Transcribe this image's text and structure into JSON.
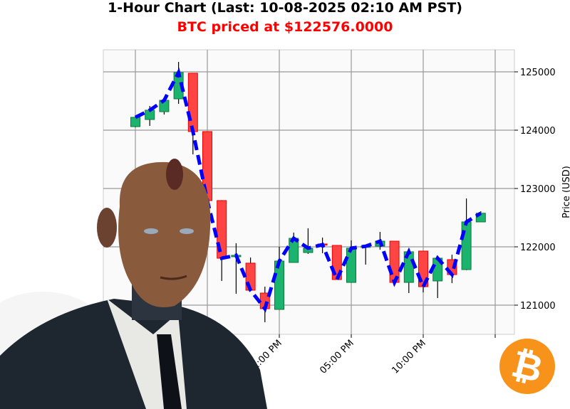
{
  "title": "1-Hour Chart (Last: 10-08-2025 02:10 AM PST)",
  "subtitle": "BTC priced at $122576.0000",
  "colors": {
    "up": "#1cb36e",
    "down": "#ff4444",
    "line": "#0000ff",
    "title_accent": "#ff0000",
    "bitcoin": "#f7931a"
  },
  "icons": {
    "logo": "bitcoin-logo",
    "figure": "android-businessman-illustration"
  },
  "chart_data": {
    "type": "candlestick",
    "ylabel": "Price (USD)",
    "ylim": [
      120500,
      125380
    ],
    "yticks": [
      121000,
      122000,
      123000,
      124000,
      125000
    ],
    "xticks_visible": [
      "12:00 PM",
      "05:00 PM",
      "10:00 PM"
    ],
    "grid": true,
    "overlay_line": "close price, dashed blue",
    "candles": [
      {
        "o": 124061,
        "h": 124230,
        "l": 124050,
        "c": 124220
      },
      {
        "o": 124183,
        "h": 124415,
        "l": 124073,
        "c": 124342
      },
      {
        "o": 124317,
        "h": 124512,
        "l": 124268,
        "c": 124512
      },
      {
        "o": 124537,
        "h": 125171,
        "l": 124451,
        "c": 124988
      },
      {
        "o": 124976,
        "h": 124976,
        "l": 123585,
        "c": 123976
      },
      {
        "o": 123976,
        "h": 123976,
        "l": 122671,
        "c": 122793
      },
      {
        "o": 122793,
        "h": 122800,
        "l": 121415,
        "c": 121805
      },
      {
        "o": 121830,
        "h": 122061,
        "l": 121195,
        "c": 121854
      },
      {
        "o": 121720,
        "h": 121817,
        "l": 121256,
        "c": 121256
      },
      {
        "o": 121207,
        "h": 121317,
        "l": 120707,
        "c": 120939
      },
      {
        "o": 120927,
        "h": 122000,
        "l": 120927,
        "c": 121756
      },
      {
        "o": 121732,
        "h": 122244,
        "l": 121732,
        "c": 122146
      },
      {
        "o": 121902,
        "h": 122317,
        "l": 121878,
        "c": 121976
      },
      {
        "o": 122049,
        "h": 122159,
        "l": 121890,
        "c": 122037
      },
      {
        "o": 122024,
        "h": 122024,
        "l": 121439,
        "c": 121439
      },
      {
        "o": 121390,
        "h": 122110,
        "l": 121390,
        "c": 121976
      },
      {
        "o": 121990,
        "h": 122010,
        "l": 121695,
        "c": 122010
      },
      {
        "o": 122012,
        "h": 122256,
        "l": 121950,
        "c": 122097
      },
      {
        "o": 122097,
        "h": 122097,
        "l": 121354,
        "c": 121390
      },
      {
        "o": 121390,
        "h": 121915,
        "l": 121207,
        "c": 121915
      },
      {
        "o": 121927,
        "h": 121927,
        "l": 121220,
        "c": 121317
      },
      {
        "o": 121415,
        "h": 121805,
        "l": 121122,
        "c": 121805
      },
      {
        "o": 121780,
        "h": 121866,
        "l": 121378,
        "c": 121524
      },
      {
        "o": 121610,
        "h": 122829,
        "l": 121600,
        "c": 122427
      },
      {
        "o": 122427,
        "h": 122610,
        "l": 122427,
        "c": 122576
      }
    ]
  }
}
